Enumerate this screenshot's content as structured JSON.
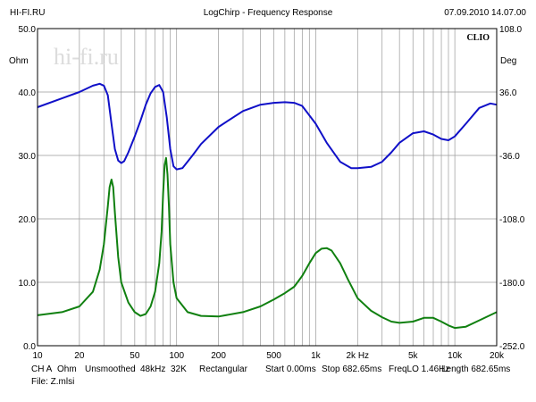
{
  "header": {
    "left": "HI-FI.RU",
    "center": "LogChirp - Frequency Response",
    "right": "07.09.2010 14.07.00"
  },
  "watermark": "hi-fi.ru",
  "brand": "CLIO",
  "footer": {
    "line1": [
      "CH A",
      "Ohm",
      "Unsmoothed",
      "48kHz",
      "32K",
      "Rectangular",
      "Start 0.00ms",
      "Stop 682.65ms",
      "FreqLO 1.46Hz",
      "Length 682.65ms"
    ],
    "line2": "File: Z.mlsi"
  },
  "colors": {
    "impedance": "#1010c8",
    "phase": "#108010",
    "grid": "#9a9a9a"
  },
  "chart_data": {
    "type": "line",
    "title": "LogChirp - Frequency Response",
    "x_scale": "log",
    "xlim": [
      10,
      20000
    ],
    "x_ticks": [
      10,
      20,
      50,
      100,
      200,
      500,
      1000,
      2000,
      5000,
      10000,
      20000
    ],
    "x_tick_labels": [
      "10",
      "20",
      "50",
      "100",
      "200",
      "500",
      "1k",
      "2k Hz",
      "5k",
      "10k",
      "20k"
    ],
    "left_axis": {
      "unit": "Ohm",
      "ylim": [
        0,
        50
      ],
      "ticks": [
        0,
        10,
        20,
        30,
        40,
        50
      ],
      "tick_labels": [
        "0.0",
        "10.0",
        "20.0",
        "30.0",
        "40.0",
        "50.0"
      ]
    },
    "right_axis": {
      "unit": "Deg",
      "ylim": [
        -252,
        108
      ],
      "ticks": [
        -252,
        -180,
        -108,
        -36,
        36,
        108
      ],
      "tick_labels": [
        "-252.0",
        "-180.0",
        "-108.0",
        "-36.0",
        "36.0",
        "108.0"
      ]
    },
    "grid": true,
    "series": [
      {
        "axis": "left",
        "color": "#1010c8",
        "points": [
          [
            10,
            37.6
          ],
          [
            15,
            39
          ],
          [
            20,
            40
          ],
          [
            25,
            41
          ],
          [
            28,
            41.3
          ],
          [
            30,
            41
          ],
          [
            32,
            39.5
          ],
          [
            34,
            35
          ],
          [
            36,
            31
          ],
          [
            38,
            29.2
          ],
          [
            40,
            28.8
          ],
          [
            42,
            29.1
          ],
          [
            45,
            30.5
          ],
          [
            50,
            33
          ],
          [
            55,
            35.5
          ],
          [
            60,
            38
          ],
          [
            65,
            39.8
          ],
          [
            70,
            40.8
          ],
          [
            75,
            41.1
          ],
          [
            80,
            40
          ],
          [
            85,
            36
          ],
          [
            90,
            31
          ],
          [
            95,
            28.3
          ],
          [
            100,
            27.8
          ],
          [
            110,
            28
          ],
          [
            130,
            30
          ],
          [
            150,
            31.8
          ],
          [
            200,
            34.5
          ],
          [
            300,
            37
          ],
          [
            400,
            38
          ],
          [
            500,
            38.3
          ],
          [
            600,
            38.4
          ],
          [
            700,
            38.3
          ],
          [
            800,
            37.8
          ],
          [
            1000,
            35
          ],
          [
            1200,
            32
          ],
          [
            1500,
            29
          ],
          [
            1800,
            28
          ],
          [
            2000,
            28
          ],
          [
            2500,
            28.2
          ],
          [
            3000,
            29
          ],
          [
            3500,
            30.5
          ],
          [
            4000,
            32
          ],
          [
            5000,
            33.5
          ],
          [
            6000,
            33.8
          ],
          [
            7000,
            33.3
          ],
          [
            8000,
            32.6
          ],
          [
            9000,
            32.4
          ],
          [
            10000,
            33
          ],
          [
            12000,
            35
          ],
          [
            15000,
            37.5
          ],
          [
            18000,
            38.2
          ],
          [
            20000,
            38
          ]
        ]
      },
      {
        "axis": "left",
        "color": "#108010",
        "points": [
          [
            10,
            4.8
          ],
          [
            15,
            5.3
          ],
          [
            20,
            6.2
          ],
          [
            25,
            8.5
          ],
          [
            28,
            12
          ],
          [
            30,
            16
          ],
          [
            32,
            22
          ],
          [
            33,
            25
          ],
          [
            34,
            26.2
          ],
          [
            35,
            25
          ],
          [
            36,
            21
          ],
          [
            38,
            14
          ],
          [
            40,
            10
          ],
          [
            45,
            6.8
          ],
          [
            50,
            5.3
          ],
          [
            55,
            4.7
          ],
          [
            60,
            5
          ],
          [
            65,
            6.2
          ],
          [
            70,
            8.5
          ],
          [
            75,
            13
          ],
          [
            78,
            18
          ],
          [
            80,
            24
          ],
          [
            82,
            28.5
          ],
          [
            84,
            29.6
          ],
          [
            86,
            27
          ],
          [
            88,
            22
          ],
          [
            90,
            16
          ],
          [
            95,
            10
          ],
          [
            100,
            7.5
          ],
          [
            120,
            5.3
          ],
          [
            150,
            4.7
          ],
          [
            200,
            4.6
          ],
          [
            300,
            5.3
          ],
          [
            400,
            6.2
          ],
          [
            500,
            7.3
          ],
          [
            600,
            8.3
          ],
          [
            700,
            9.3
          ],
          [
            800,
            11
          ],
          [
            900,
            13
          ],
          [
            1000,
            14.6
          ],
          [
            1100,
            15.3
          ],
          [
            1200,
            15.4
          ],
          [
            1300,
            15
          ],
          [
            1500,
            13
          ],
          [
            1700,
            10.5
          ],
          [
            2000,
            7.5
          ],
          [
            2500,
            5.5
          ],
          [
            3000,
            4.5
          ],
          [
            3500,
            3.8
          ],
          [
            4000,
            3.6
          ],
          [
            5000,
            3.8
          ],
          [
            6000,
            4.4
          ],
          [
            7000,
            4.4
          ],
          [
            8000,
            3.8
          ],
          [
            9000,
            3.2
          ],
          [
            10000,
            2.8
          ],
          [
            12000,
            3
          ],
          [
            15000,
            4
          ],
          [
            20000,
            5.3
          ]
        ]
      }
    ]
  }
}
